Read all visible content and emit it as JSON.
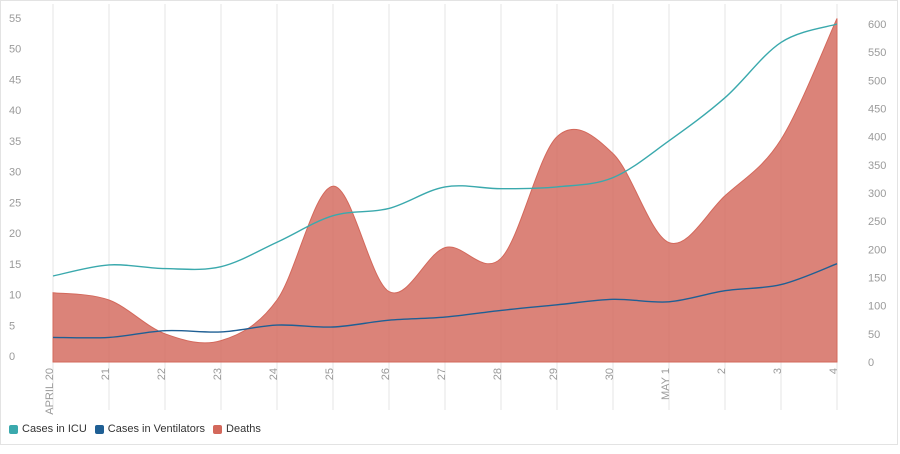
{
  "chart_data": {
    "type": "area",
    "title": "",
    "x": [
      "APRIL 20",
      "21",
      "22",
      "23",
      "24",
      "25",
      "26",
      "27",
      "28",
      "29",
      "30",
      "MAY 1",
      "2",
      "3",
      "4"
    ],
    "y_left": {
      "min": 0,
      "max": 55,
      "ticks": [
        0,
        5,
        10,
        15,
        20,
        25,
        30,
        35,
        40,
        45,
        50,
        55
      ]
    },
    "y_right": {
      "min": 0,
      "max": 600,
      "ticks": [
        0,
        50,
        100,
        150,
        200,
        250,
        300,
        350,
        400,
        450,
        500,
        550,
        600
      ]
    },
    "series": [
      {
        "name": "Cases in ICU",
        "axis": "left",
        "kind": "line",
        "color": "#3aa9ad",
        "values": [
          14,
          15.8,
          15.2,
          15.5,
          19.5,
          23.8,
          25,
          28.5,
          28.2,
          28.5,
          30,
          36,
          43,
          52,
          55
        ]
      },
      {
        "name": "Cases in Ventilators",
        "axis": "left",
        "kind": "line",
        "color": "#1f5f94",
        "values": [
          4,
          4,
          5.1,
          4.9,
          6,
          5.7,
          6.8,
          7.3,
          8.4,
          9.3,
          10.2,
          9.8,
          11.6,
          12.6,
          16
        ]
      },
      {
        "name": "Deaths",
        "axis": "right",
        "kind": "area",
        "color": "#d3685b",
        "values": [
          123,
          110,
          50,
          38,
          110,
          312,
          125,
          203,
          184,
          400,
          370,
          212,
          295,
          395,
          610
        ]
      }
    ],
    "grid": "vertical",
    "legend_position": "bottom-left"
  }
}
